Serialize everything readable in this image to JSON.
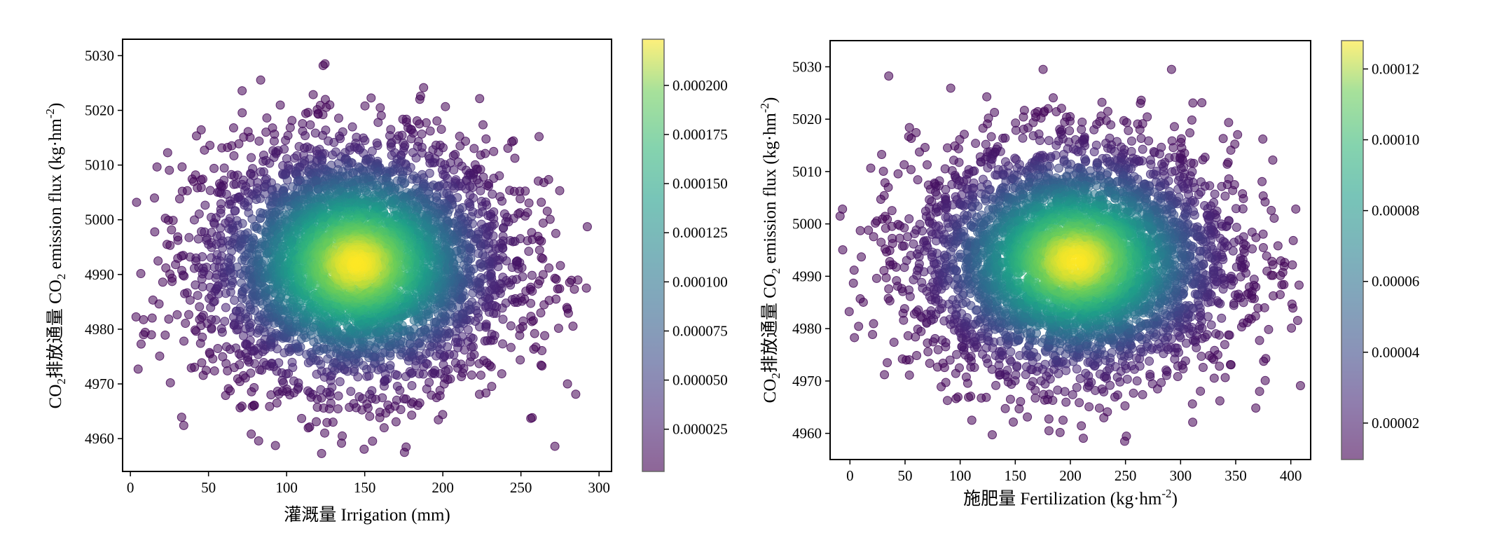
{
  "colors": {
    "scatter_alpha": 0.55,
    "low": "#440154",
    "high": "#fde725"
  },
  "chart_data": [
    {
      "type": "scatter",
      "xlabel": "灌溉量 Irrigation (mm)",
      "ylabel_prefix": "CO",
      "ylabel_sub": "2",
      "ylabel_mid": "排放通量 CO",
      "ylabel_sub2": "2",
      "ylabel_tail": " emission flux (kg·hm",
      "ylabel_sup": "-2",
      "ylabel_end": ")",
      "xlim": [
        -5,
        308
      ],
      "ylim": [
        4954,
        5033
      ],
      "xticks": [
        0,
        50,
        100,
        150,
        200,
        250,
        300
      ],
      "yticks": [
        4960,
        4970,
        4980,
        4990,
        5000,
        5010,
        5020,
        5030
      ],
      "colorbar": {
        "range": [
          3.5e-06,
          0.0002235
        ],
        "ticks": [
          2.5e-05,
          5e-05,
          7.5e-05,
          0.0001,
          0.000125,
          0.00015,
          0.000175,
          0.0002
        ],
        "tick_labels": [
          "0.000025",
          "0.000050",
          "0.000075",
          "0.000100",
          "0.000125",
          "0.000150",
          "0.000175",
          "0.000200"
        ]
      },
      "density_center": {
        "x": 145,
        "y": 4992
      },
      "x_spread_sd": 55,
      "y_spread_sd": 13
    },
    {
      "type": "scatter",
      "xlabel_main": "施肥量 Fertilization (kg·hm",
      "xlabel_sup": "-2",
      "xlabel_end": ")",
      "ylabel_prefix": "CO",
      "ylabel_sub": "2",
      "ylabel_mid": "排放通量 CO",
      "ylabel_sub2": "2",
      "ylabel_tail": " emission flux (kg·hm",
      "ylabel_sup": "-2",
      "ylabel_end": ")",
      "xlim": [
        -18,
        418
      ],
      "ylim": [
        4955,
        5035
      ],
      "xticks": [
        0,
        50,
        100,
        150,
        200,
        250,
        300,
        350,
        400
      ],
      "yticks": [
        4960,
        4970,
        4980,
        4990,
        5000,
        5010,
        5020,
        5030
      ],
      "colorbar": {
        "range": [
          9.7e-06,
          0.000128
        ],
        "ticks": [
          2e-05,
          4e-05,
          6e-05,
          8e-05,
          0.0001,
          0.00012
        ],
        "tick_labels": [
          "0.00002",
          "0.00004",
          "0.00006",
          "0.00008",
          "0.00010",
          "0.00012"
        ]
      },
      "density_center": {
        "x": 205,
        "y": 4993
      },
      "x_spread_sd": 80,
      "y_spread_sd": 13
    }
  ]
}
